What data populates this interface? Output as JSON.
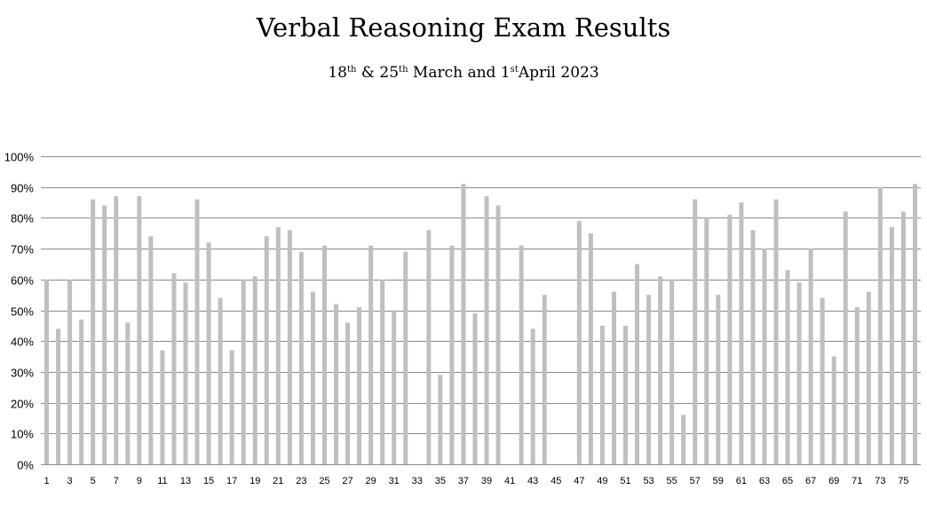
{
  "chart_data": {
    "type": "bar",
    "title": "Verbal Reasoning Exam Results",
    "subtitle": {
      "p1": "18",
      "s1": "th",
      "p2": " & 25",
      "s2": "th",
      "p3": " March and 1",
      "s3": "st",
      "p4": "April 2023"
    },
    "xlabel": "",
    "ylabel": "",
    "ylim": [
      0,
      1
    ],
    "yticks": [
      "0%",
      "10%",
      "20%",
      "30%",
      "40%",
      "50%",
      "60%",
      "70%",
      "80%",
      "90%",
      "100%"
    ],
    "grid": true,
    "bar_color": "#bfbfbf",
    "grid_color": "#8c8c8c",
    "x_tick_labels": [
      "1",
      "3",
      "5",
      "7",
      "9",
      "11",
      "13",
      "15",
      "17",
      "19",
      "21",
      "23",
      "25",
      "27",
      "29",
      "31",
      "33",
      "35",
      "37",
      "39",
      "41",
      "43",
      "45",
      "47",
      "49",
      "51",
      "53",
      "55",
      "57",
      "59",
      "61",
      "63",
      "65",
      "67",
      "69",
      "71",
      "73",
      "75"
    ],
    "categories": [
      1,
      2,
      3,
      4,
      5,
      6,
      7,
      8,
      9,
      10,
      11,
      12,
      13,
      14,
      15,
      16,
      17,
      18,
      19,
      20,
      21,
      22,
      23,
      24,
      25,
      26,
      27,
      28,
      29,
      30,
      31,
      32,
      33,
      34,
      35,
      36,
      37,
      38,
      39,
      40,
      41,
      42,
      43,
      44,
      45,
      46,
      47,
      48,
      49,
      50,
      51,
      52,
      53,
      54,
      55,
      56,
      57,
      58,
      59,
      60,
      61,
      62,
      63,
      64,
      65,
      66,
      67,
      68,
      69,
      70,
      71,
      72,
      73,
      74,
      75,
      76
    ],
    "values": [
      0.6,
      0.44,
      0.6,
      0.47,
      0.86,
      0.84,
      0.87,
      0.46,
      0.87,
      0.74,
      0.37,
      0.62,
      0.59,
      0.86,
      0.72,
      0.54,
      0.37,
      0.6,
      0.61,
      0.74,
      0.77,
      0.76,
      0.69,
      0.56,
      0.71,
      0.52,
      0.46,
      0.51,
      0.71,
      0.6,
      0.5,
      0.69,
      null,
      0.76,
      0.29,
      0.71,
      0.91,
      0.49,
      0.87,
      0.84,
      null,
      0.71,
      0.44,
      0.55,
      null,
      null,
      0.79,
      0.75,
      0.45,
      0.56,
      0.45,
      0.65,
      0.55,
      0.61,
      0.6,
      0.16,
      0.86,
      0.8,
      0.55,
      0.81,
      0.85,
      0.76,
      0.7,
      0.86,
      0.63,
      0.59,
      0.7,
      0.54,
      0.35,
      0.82,
      0.51,
      0.56,
      0.9,
      0.77,
      0.82,
      0.91
    ]
  }
}
